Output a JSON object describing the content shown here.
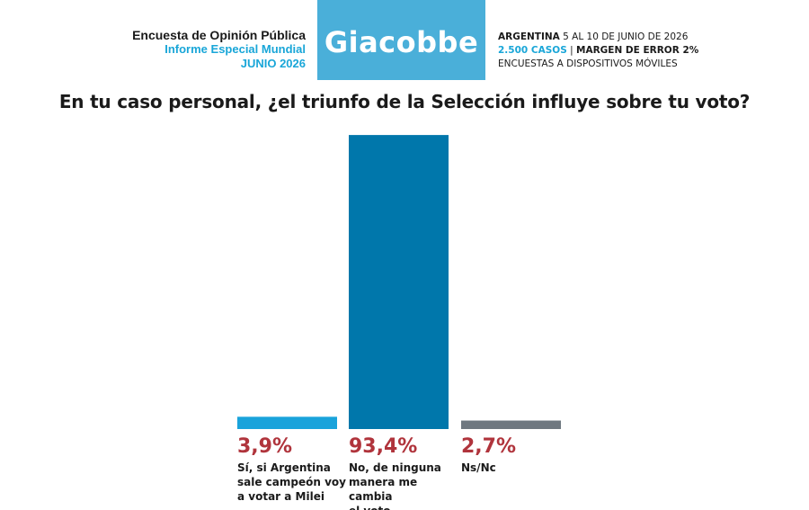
{
  "header": {
    "left_line1": "Encuesta de Opinión Pública",
    "left_line2": "Informe Especial Mundial",
    "left_line3": "JUNIO 2026",
    "brand": "Giacobbe",
    "right_country": "ARGENTINA",
    "right_dates": "5 AL 10 DE JUNIO DE 2026",
    "right_cases": "2.500 CASOS",
    "right_sep": "|",
    "right_margin": "MARGEN DE ERROR 2%",
    "right_method": "ENCUESTAS A DISPOSITIVOS MÓVILES"
  },
  "colors": {
    "brand_bg": "#4aafd9",
    "accent_text": "#19a6d8",
    "percent_text": "#b0343c"
  },
  "chart_data": {
    "type": "bar",
    "title": "En tu caso personal, ¿el triunfo de la Selección influye sobre tu voto?",
    "categories": [
      "Sí, si Argentina sale campeón voy a votar a Milei",
      "No, de ninguna manera me cambia el voto",
      "Ns/Nc"
    ],
    "values": [
      3.9,
      93.4,
      2.7
    ],
    "value_labels": [
      "3,9%",
      "93,4%",
      "2,7%"
    ],
    "bar_colors": [
      "#19a3db",
      "#0077ab",
      "#6f7880"
    ],
    "ylim": [
      0,
      100
    ],
    "grid": false,
    "legend": "none"
  },
  "labels": [
    {
      "pct": "3,9%",
      "lines": [
        "Sí, si Argentina",
        "sale campeón voy",
        "a votar a Milei"
      ]
    },
    {
      "pct": "93,4%",
      "lines": [
        "No, de ninguna",
        "manera me cambia",
        "el voto"
      ]
    },
    {
      "pct": "2,7%",
      "lines": [
        "Ns/Nc"
      ]
    }
  ]
}
